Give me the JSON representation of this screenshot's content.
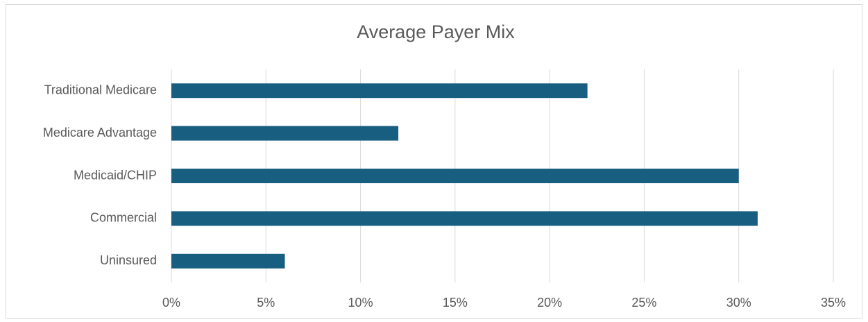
{
  "chart_data": {
    "type": "bar",
    "orientation": "horizontal",
    "title": "Average Payer Mix",
    "categories": [
      "Traditional Medicare",
      "Medicare Advantage",
      "Medicaid/CHIP",
      "Commercial",
      "Uninsured"
    ],
    "values": [
      22,
      12,
      30,
      31,
      6
    ],
    "color": "#175e80",
    "xlim": [
      0,
      35
    ],
    "xticks": [
      {
        "value": 0,
        "label": "0%"
      },
      {
        "value": 5,
        "label": "5%"
      },
      {
        "value": 10,
        "label": "10%"
      },
      {
        "value": 15,
        "label": "15%"
      },
      {
        "value": 20,
        "label": "20%"
      },
      {
        "value": 25,
        "label": "25%"
      },
      {
        "value": 30,
        "label": "30%"
      },
      {
        "value": 35,
        "label": "35%"
      }
    ],
    "grid": true
  }
}
